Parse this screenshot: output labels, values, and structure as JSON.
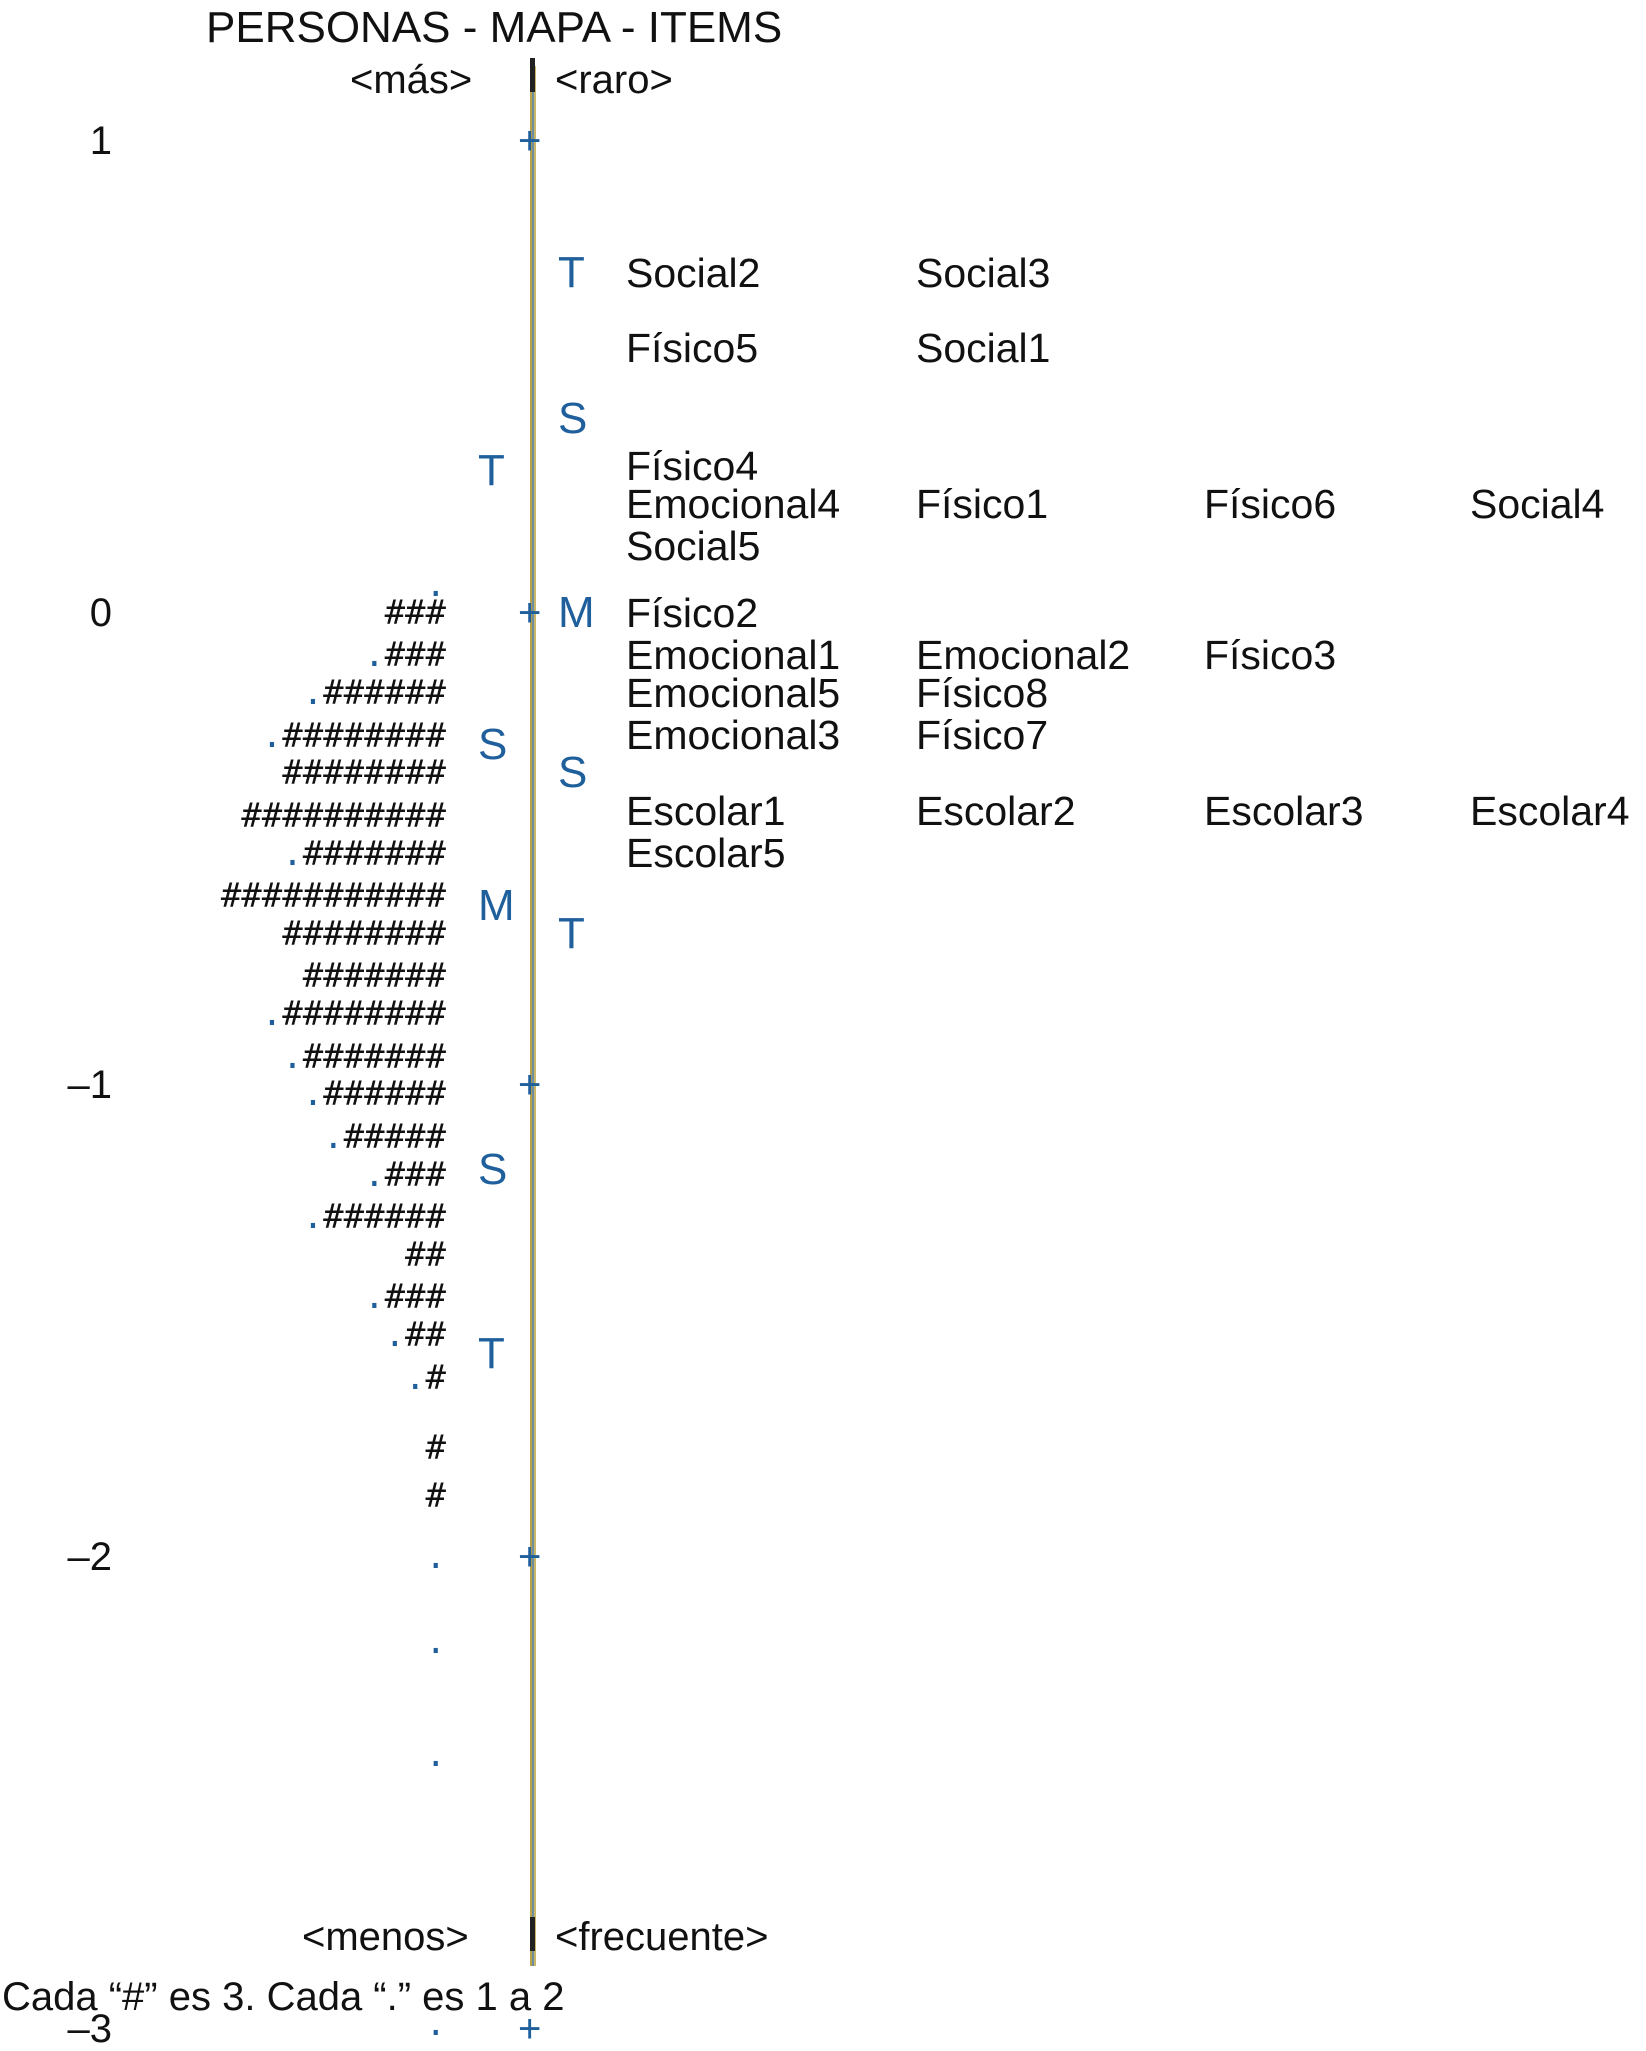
{
  "title": "PERSONAS - MAPA - ITEMS",
  "axis_labels": {
    "top_left": "<más>",
    "top_right": "<raro>",
    "bottom_left": "<menos>",
    "bottom_right": "<frecuente>"
  },
  "scale_values": [
    {
      "value": 1,
      "label": "1"
    },
    {
      "value": 0,
      "label": "0"
    },
    {
      "value": -1,
      "label": "–1"
    },
    {
      "value": -2,
      "label": "–2"
    },
    {
      "value": -3,
      "label": "–3"
    }
  ],
  "tick_symbol": "+",
  "person_markers": [
    {
      "label": "T",
      "measure": 0.3
    },
    {
      "label": "S",
      "measure": -0.28
    },
    {
      "label": "M",
      "measure": -0.62
    },
    {
      "label": "S",
      "measure": -1.18
    },
    {
      "label": "T",
      "measure": -1.57
    }
  ],
  "item_markers": [
    {
      "label": "T",
      "measure": 0.72
    },
    {
      "label": "S",
      "measure": 0.41
    },
    {
      "label": "M",
      "measure": 0.0
    },
    {
      "label": "S",
      "measure": -0.34
    },
    {
      "label": "T",
      "measure": -0.68
    }
  ],
  "person_histogram": [
    {
      "dots": ".",
      "hashes": "",
      "measure": 0.06
    },
    {
      "dots": "",
      "hashes": "###",
      "measure": 0.0
    },
    {
      "dots": ".",
      "hashes": "###",
      "measure": -0.09
    },
    {
      "dots": ".",
      "hashes": "######",
      "measure": -0.17
    },
    {
      "dots": ".",
      "hashes": "########",
      "measure": -0.26
    },
    {
      "dots": "",
      "hashes": "########",
      "measure": -0.34
    },
    {
      "dots": "",
      "hashes": "##########",
      "measure": -0.43
    },
    {
      "dots": ".",
      "hashes": "#######",
      "measure": -0.51
    },
    {
      "dots": "",
      "hashes": "###########",
      "measure": -0.6
    },
    {
      "dots": "",
      "hashes": "########",
      "measure": -0.68
    },
    {
      "dots": "",
      "hashes": "#######",
      "measure": -0.77
    },
    {
      "dots": ".",
      "hashes": "########",
      "measure": -0.85
    },
    {
      "dots": ".",
      "hashes": "#######",
      "measure": -0.94
    },
    {
      "dots": ".",
      "hashes": "######",
      "measure": -1.02
    },
    {
      "dots": ".",
      "hashes": "#####",
      "measure": -1.11
    },
    {
      "dots": ".",
      "hashes": "###",
      "measure": -1.19
    },
    {
      "dots": ".",
      "hashes": "######",
      "measure": -1.28
    },
    {
      "dots": "",
      "hashes": "##",
      "measure": -1.36
    },
    {
      "dots": ".",
      "hashes": "###",
      "measure": -1.45
    },
    {
      "dots": ".",
      "hashes": "##",
      "measure": -1.53
    },
    {
      "dots": ".",
      "hashes": "#",
      "measure": -1.62
    },
    {
      "dots": "",
      "hashes": "#",
      "measure": -1.77
    },
    {
      "dots": "",
      "hashes": "#",
      "measure": -1.87
    },
    {
      "dots": ".",
      "hashes": "",
      "measure": -2.0
    },
    {
      "dots": ".",
      "hashes": "",
      "measure": -2.18
    },
    {
      "dots": ".",
      "hashes": "",
      "measure": -2.42
    },
    {
      "dots": ".",
      "hashes": "",
      "measure": -2.99
    }
  ],
  "item_rows": [
    {
      "measure": 0.72,
      "items": [
        "Social2",
        "Social3"
      ]
    },
    {
      "measure": 0.56,
      "items": [
        "Físico5",
        "Social1"
      ]
    },
    {
      "measure": 0.31,
      "items": [
        "Físico4"
      ]
    },
    {
      "measure": 0.23,
      "items": [
        "Emocional4",
        "Físico1",
        "Físico6",
        "Social4"
      ]
    },
    {
      "measure": 0.14,
      "items": [
        "Social5"
      ]
    },
    {
      "measure": 0.0,
      "items": [
        "Físico2"
      ]
    },
    {
      "measure": -0.09,
      "items": [
        "Emocional1",
        "Emocional2",
        "Físico3"
      ]
    },
    {
      "measure": -0.17,
      "items": [
        "Emocional5",
        "Físico8"
      ]
    },
    {
      "measure": -0.26,
      "items": [
        "Emocional3",
        "Físico7"
      ]
    },
    {
      "measure": -0.42,
      "items": [
        "Escolar1",
        "Escolar2",
        "Escolar3",
        "Escolar4"
      ]
    },
    {
      "measure": -0.51,
      "items": [
        "Escolar5"
      ]
    }
  ],
  "footnote": "Cada “#” es 3. Cada “.” es 1 a 2"
}
